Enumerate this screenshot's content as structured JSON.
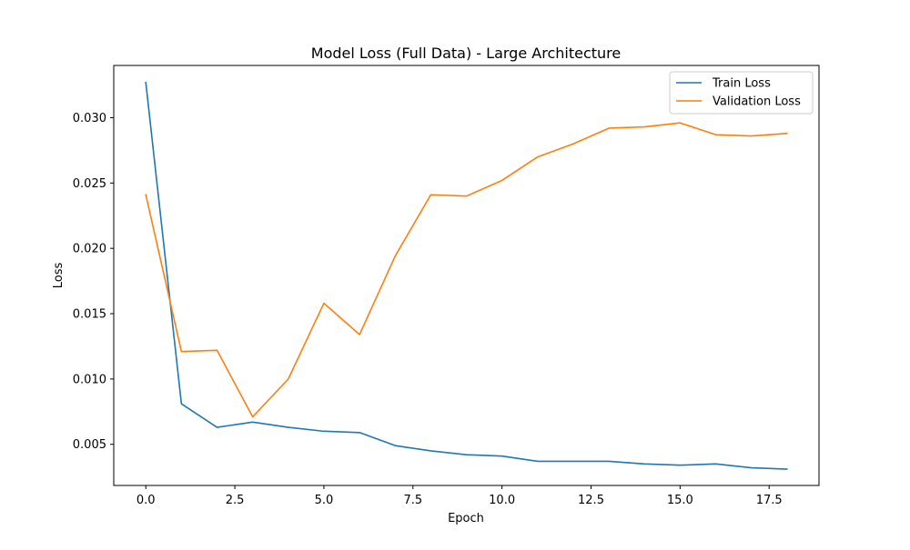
{
  "chart_data": {
    "type": "line",
    "title": "Model Loss (Full Data) - Large Architecture",
    "xlabel": "Epoch",
    "ylabel": "Loss",
    "xlim": [
      -0.9,
      18.9
    ],
    "ylim": [
      0.00185,
      0.034
    ],
    "xticks": [
      0.0,
      2.5,
      5.0,
      7.5,
      10.0,
      12.5,
      15.0,
      17.5
    ],
    "xtick_labels": [
      "0.0",
      "2.5",
      "5.0",
      "7.5",
      "10.0",
      "12.5",
      "15.0",
      "17.5"
    ],
    "yticks": [
      0.005,
      0.01,
      0.015,
      0.02,
      0.025,
      0.03
    ],
    "ytick_labels": [
      "0.005",
      "0.010",
      "0.015",
      "0.020",
      "0.025",
      "0.030"
    ],
    "grid": false,
    "legend_position": "upper right",
    "x": [
      0,
      1,
      2,
      3,
      4,
      5,
      6,
      7,
      8,
      9,
      10,
      11,
      12,
      13,
      14,
      15,
      16,
      17,
      18
    ],
    "series": [
      {
        "name": "Train Loss",
        "color": "#1f77b4",
        "values": [
          0.0327,
          0.0081,
          0.0063,
          0.0067,
          0.0063,
          0.006,
          0.0059,
          0.0049,
          0.0045,
          0.0042,
          0.0041,
          0.0037,
          0.0037,
          0.0037,
          0.0035,
          0.0034,
          0.0035,
          0.0032,
          0.0031
        ]
      },
      {
        "name": "Validation Loss",
        "color": "#ff7f0e",
        "values": [
          0.0241,
          0.0121,
          0.0122,
          0.0071,
          0.01,
          0.0158,
          0.0134,
          0.0194,
          0.0241,
          0.024,
          0.0252,
          0.027,
          0.028,
          0.0292,
          0.0293,
          0.0296,
          0.0287,
          0.0286,
          0.0288
        ]
      }
    ]
  }
}
